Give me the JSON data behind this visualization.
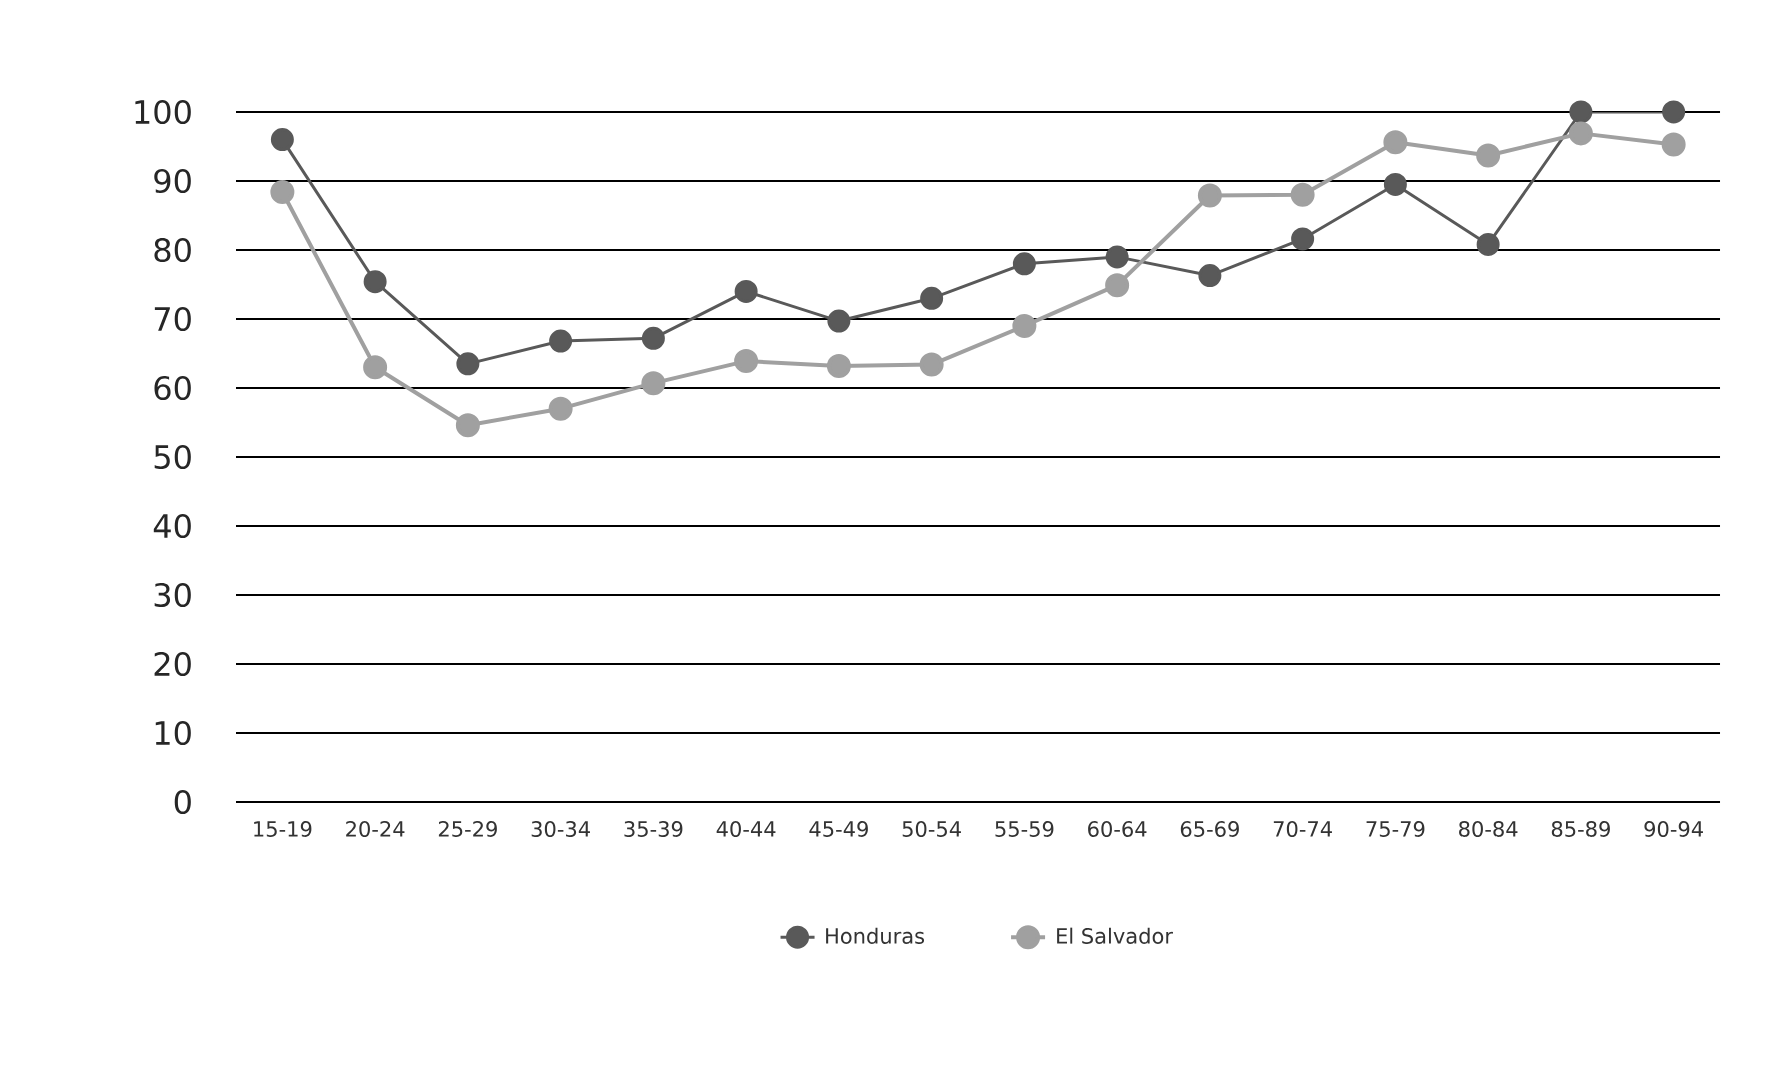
{
  "chart_data": {
    "type": "line",
    "categories": [
      "15-19",
      "20-24",
      "25-29",
      "30-34",
      "35-39",
      "40-44",
      "45-49",
      "50-54",
      "55-59",
      "60-64",
      "65-69",
      "70-74",
      "75-79",
      "80-84",
      "85-89",
      "90-94"
    ],
    "series": [
      {
        "name": "Honduras",
        "color": "#595959",
        "values": [
          96,
          75.4,
          63.5,
          66.8,
          67.2,
          74,
          69.7,
          73,
          78,
          79,
          76.3,
          81.6,
          89.5,
          80.8,
          100,
          100
        ]
      },
      {
        "name": "El Salvador",
        "color": "#a0a0a0",
        "values": [
          88.4,
          63,
          54.6,
          57,
          60.7,
          63.9,
          63.2,
          63.4,
          69,
          74.9,
          87.9,
          88,
          95.6,
          93.7,
          96.9,
          95.3
        ]
      }
    ],
    "ylim": [
      0,
      100
    ],
    "yticks": [
      0,
      10,
      20,
      30,
      40,
      50,
      60,
      70,
      80,
      90,
      100
    ],
    "grid": "y",
    "legend": "bottom",
    "marker": "circle",
    "line_style": "solid"
  }
}
